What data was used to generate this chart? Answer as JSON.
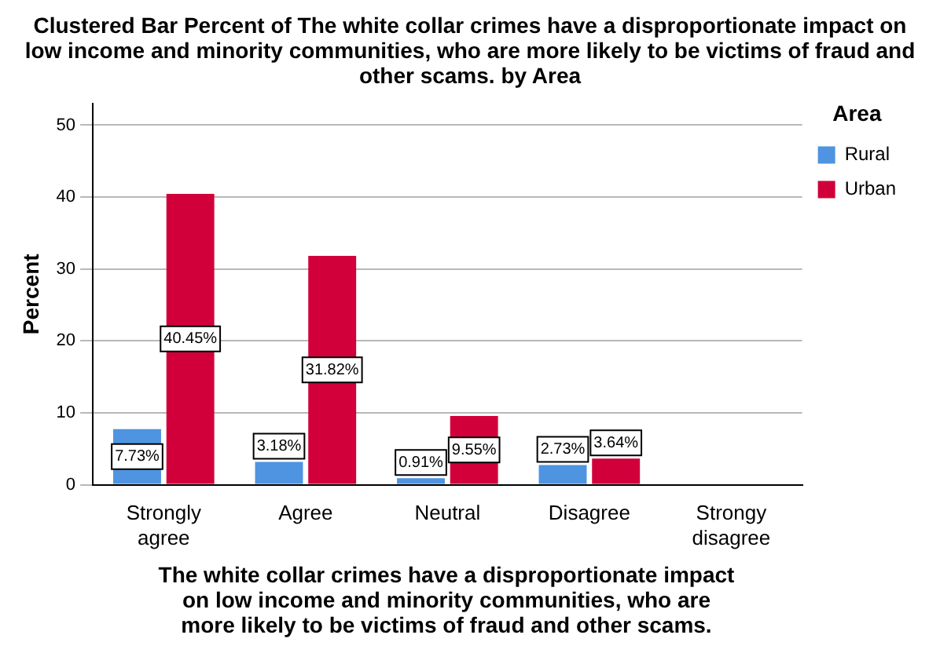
{
  "chart_data": {
    "type": "bar",
    "title": "Clustered Bar Percent of The white collar crimes have a disproportionate impact on low income and minority communities, who are more likely to be victims of fraud and other scams. by Area",
    "xlabel": "The white collar crimes have a disproportionate impact on low income and minority communities, who are more likely to be victims of fraud and other scams.",
    "ylabel": "Percent",
    "legend_title": "Area",
    "categories": [
      "Strongly agree",
      "Agree",
      "Neutral",
      "Disagree",
      "Strongy disagree"
    ],
    "series": [
      {
        "name": "Rural",
        "color": "#4f94e0",
        "values": [
          7.73,
          3.18,
          0.91,
          2.73,
          null
        ],
        "value_labels": [
          "7.73%",
          "3.18%",
          "0.91%",
          "2.73%",
          null
        ]
      },
      {
        "name": "Urban",
        "color": "#d2003a",
        "values": [
          40.45,
          31.82,
          9.55,
          3.64,
          null
        ],
        "value_labels": [
          "40.45%",
          "31.82%",
          "9.55%",
          "3.64%",
          null
        ]
      }
    ],
    "ylim": [
      0,
      53
    ],
    "yticks": [
      0,
      10,
      20,
      30,
      40,
      50
    ],
    "grid": "y",
    "legend": "top right"
  }
}
